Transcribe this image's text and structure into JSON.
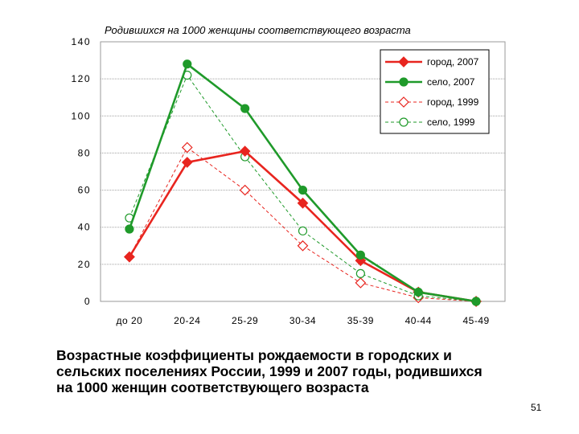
{
  "chart_data": {
    "type": "line",
    "title": "Родившихся на 1000 женщины соответствующего возраста",
    "categories": [
      "до 20",
      "20-24",
      "25-29",
      "30-34",
      "35-39",
      "40-44",
      "45-49"
    ],
    "ylim": [
      0,
      140
    ],
    "yticks": [
      0,
      20,
      40,
      60,
      80,
      100,
      120,
      140
    ],
    "grid": true,
    "legend_position": "top-right",
    "series": [
      {
        "name": "город, 2007",
        "values": [
          24,
          75,
          81,
          53,
          22,
          5,
          0
        ],
        "color": "#e8251f",
        "style": "solid",
        "marker": "diamond-filled"
      },
      {
        "name": "село, 2007",
        "values": [
          39,
          128,
          104,
          60,
          25,
          5,
          0
        ],
        "color": "#1f9a2a",
        "style": "solid",
        "marker": "circle-filled"
      },
      {
        "name": "город, 1999",
        "values": [
          24,
          83,
          60,
          30,
          10,
          2,
          0
        ],
        "color": "#e8251f",
        "style": "dashed",
        "marker": "diamond-open"
      },
      {
        "name": "село, 1999",
        "values": [
          45,
          122,
          78,
          38,
          15,
          3,
          0
        ],
        "color": "#1f9a2a",
        "style": "dashed",
        "marker": "circle-open"
      }
    ]
  },
  "caption": {
    "line1": "Возрастные коэффициенты рождаемости в городских и",
    "line2": "сельских поселениях России, 1999 и 2007 годы, родившихся",
    "line3": "на 1000 женщин соответствующего возраста"
  },
  "page_number": "51"
}
